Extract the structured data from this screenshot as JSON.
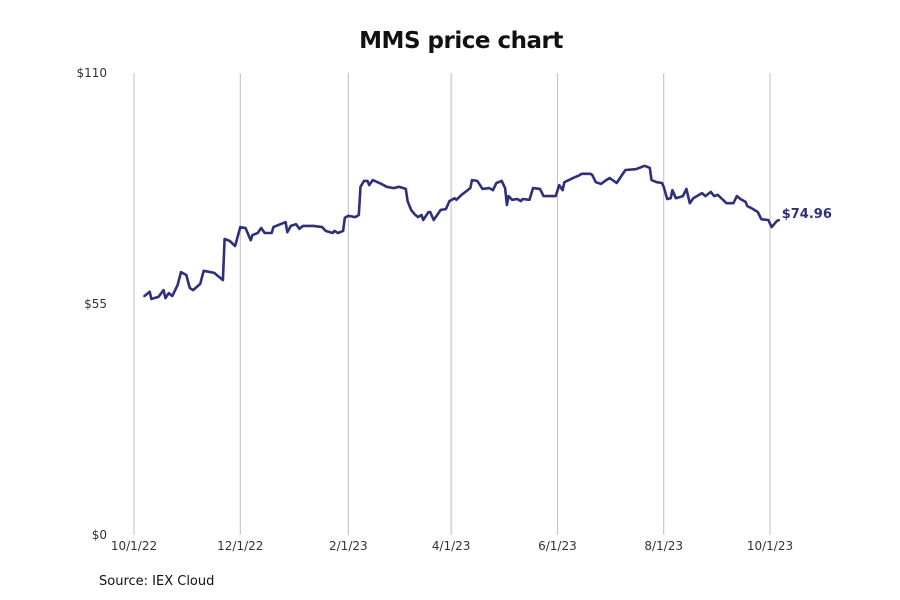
{
  "chart_data": {
    "type": "line",
    "title": "MMS price chart",
    "source": "Source: IEX Cloud",
    "xlabel": "",
    "ylabel": "",
    "ylim": [
      0,
      110
    ],
    "xlim": [
      "2022-10-01",
      "2023-10-01"
    ],
    "y_ticks": [
      {
        "value": 0,
        "label": "$0"
      },
      {
        "value": 55,
        "label": "$55"
      },
      {
        "value": 110,
        "label": "$110"
      }
    ],
    "x_ticks": [
      {
        "date": "2022-10-01",
        "label": "10/1/22"
      },
      {
        "date": "2022-12-01",
        "label": "12/1/22"
      },
      {
        "date": "2023-02-01",
        "label": "2/1/23"
      },
      {
        "date": "2023-04-01",
        "label": "4/1/23"
      },
      {
        "date": "2023-06-01",
        "label": "6/1/23"
      },
      {
        "date": "2023-08-01",
        "label": "8/1/23"
      },
      {
        "date": "2023-10-01",
        "label": "10/1/23"
      }
    ],
    "grid": "vertical",
    "line_color": "#2f2f7c",
    "grid_color": "#bdbdbd",
    "last_value_label": "$74.96",
    "points": [
      [
        "2022-10-07",
        56.9
      ],
      [
        "2022-10-10",
        57.9
      ],
      [
        "2022-10-11",
        56.2
      ],
      [
        "2022-10-15",
        56.7
      ],
      [
        "2022-10-18",
        58.3
      ],
      [
        "2022-10-19",
        56.4
      ],
      [
        "2022-10-21",
        57.6
      ],
      [
        "2022-10-23",
        56.9
      ],
      [
        "2022-10-26",
        59.5
      ],
      [
        "2022-10-28",
        62.6
      ],
      [
        "2022-10-31",
        61.9
      ],
      [
        "2022-11-02",
        58.8
      ],
      [
        "2022-11-04",
        58.3
      ],
      [
        "2022-11-08",
        59.8
      ],
      [
        "2022-11-10",
        62.9
      ],
      [
        "2022-11-16",
        62.4
      ],
      [
        "2022-11-21",
        60.7
      ],
      [
        "2022-11-22",
        70.5
      ],
      [
        "2022-11-25",
        70.0
      ],
      [
        "2022-11-28",
        68.8
      ],
      [
        "2022-12-01",
        73.3
      ],
      [
        "2022-12-04",
        73.1
      ],
      [
        "2022-12-07",
        70.2
      ],
      [
        "2022-12-08",
        71.4
      ],
      [
        "2022-12-11",
        71.9
      ],
      [
        "2022-12-13",
        73.1
      ],
      [
        "2022-12-15",
        71.9
      ],
      [
        "2022-12-19",
        71.9
      ],
      [
        "2022-12-20",
        73.3
      ],
      [
        "2022-12-27",
        74.5
      ],
      [
        "2022-12-28",
        72.1
      ],
      [
        "2022-12-30",
        73.6
      ],
      [
        "2023-01-02",
        74.0
      ],
      [
        "2023-01-04",
        72.9
      ],
      [
        "2023-01-06",
        73.6
      ],
      [
        "2023-01-12",
        73.6
      ],
      [
        "2023-01-17",
        73.3
      ],
      [
        "2023-01-19",
        72.4
      ],
      [
        "2023-01-23",
        71.9
      ],
      [
        "2023-01-24",
        72.4
      ],
      [
        "2023-01-26",
        71.9
      ],
      [
        "2023-01-29",
        72.4
      ],
      [
        "2023-01-30",
        75.5
      ],
      [
        "2023-02-01",
        76.0
      ],
      [
        "2023-02-05",
        75.7
      ],
      [
        "2023-02-07",
        76.2
      ],
      [
        "2023-02-08",
        82.9
      ],
      [
        "2023-02-10",
        84.3
      ],
      [
        "2023-02-12",
        84.3
      ],
      [
        "2023-02-13",
        83.3
      ],
      [
        "2023-02-15",
        84.5
      ],
      [
        "2023-02-20",
        83.6
      ],
      [
        "2023-02-23",
        82.9
      ],
      [
        "2023-02-27",
        82.6
      ],
      [
        "2023-03-02",
        82.9
      ],
      [
        "2023-03-06",
        82.4
      ],
      [
        "2023-03-07",
        79.5
      ],
      [
        "2023-03-09",
        77.4
      ],
      [
        "2023-03-11",
        76.4
      ],
      [
        "2023-03-13",
        75.7
      ],
      [
        "2023-03-15",
        76.2
      ],
      [
        "2023-03-16",
        75.0
      ],
      [
        "2023-03-19",
        76.9
      ],
      [
        "2023-03-20",
        76.9
      ],
      [
        "2023-03-22",
        75.0
      ],
      [
        "2023-03-26",
        77.4
      ],
      [
        "2023-03-29",
        77.6
      ],
      [
        "2023-03-31",
        79.5
      ],
      [
        "2023-04-03",
        80.2
      ],
      [
        "2023-04-04",
        79.8
      ],
      [
        "2023-04-07",
        81.0
      ],
      [
        "2023-04-12",
        82.6
      ],
      [
        "2023-04-13",
        84.5
      ],
      [
        "2023-04-16",
        84.3
      ],
      [
        "2023-04-19",
        82.4
      ],
      [
        "2023-04-23",
        82.6
      ],
      [
        "2023-04-25",
        82.1
      ],
      [
        "2023-04-27",
        83.8
      ],
      [
        "2023-04-30",
        84.3
      ],
      [
        "2023-05-02",
        82.6
      ],
      [
        "2023-05-03",
        78.6
      ],
      [
        "2023-05-04",
        80.7
      ],
      [
        "2023-05-06",
        79.8
      ],
      [
        "2023-05-09",
        80.0
      ],
      [
        "2023-05-11",
        79.5
      ],
      [
        "2023-05-12",
        80.0
      ],
      [
        "2023-05-16",
        79.8
      ],
      [
        "2023-05-18",
        82.6
      ],
      [
        "2023-05-22",
        82.4
      ],
      [
        "2023-05-24",
        80.7
      ],
      [
        "2023-05-31",
        80.7
      ],
      [
        "2023-06-02",
        83.3
      ],
      [
        "2023-06-04",
        82.1
      ],
      [
        "2023-06-05",
        84.0
      ],
      [
        "2023-06-11",
        85.2
      ],
      [
        "2023-06-13",
        85.5
      ],
      [
        "2023-06-15",
        86.0
      ],
      [
        "2023-06-20",
        86.0
      ],
      [
        "2023-06-21",
        85.7
      ],
      [
        "2023-06-23",
        84.0
      ],
      [
        "2023-06-26",
        83.6
      ],
      [
        "2023-06-29",
        84.5
      ],
      [
        "2023-07-01",
        85.0
      ],
      [
        "2023-07-05",
        83.8
      ],
      [
        "2023-07-08",
        85.7
      ],
      [
        "2023-07-10",
        86.9
      ],
      [
        "2023-07-16",
        87.1
      ],
      [
        "2023-07-18",
        87.4
      ],
      [
        "2023-07-21",
        87.9
      ],
      [
        "2023-07-23",
        87.6
      ],
      [
        "2023-07-24",
        87.4
      ],
      [
        "2023-07-25",
        84.5
      ],
      [
        "2023-07-28",
        84.0
      ],
      [
        "2023-07-31",
        83.8
      ],
      [
        "2023-08-01",
        82.9
      ],
      [
        "2023-08-03",
        80.0
      ],
      [
        "2023-08-05",
        80.2
      ],
      [
        "2023-08-06",
        82.1
      ],
      [
        "2023-08-08",
        80.2
      ],
      [
        "2023-08-12",
        80.7
      ],
      [
        "2023-08-14",
        82.4
      ],
      [
        "2023-08-16",
        79.0
      ],
      [
        "2023-08-18",
        80.2
      ],
      [
        "2023-08-23",
        81.4
      ],
      [
        "2023-08-25",
        80.7
      ],
      [
        "2023-08-28",
        81.7
      ],
      [
        "2023-08-30",
        80.7
      ],
      [
        "2023-09-01",
        81.0
      ],
      [
        "2023-09-04",
        79.8
      ],
      [
        "2023-09-06",
        79.0
      ],
      [
        "2023-09-10",
        79.0
      ],
      [
        "2023-09-12",
        80.7
      ],
      [
        "2023-09-14",
        80.0
      ],
      [
        "2023-09-17",
        79.3
      ],
      [
        "2023-09-18",
        78.3
      ],
      [
        "2023-09-20",
        77.9
      ],
      [
        "2023-09-24",
        76.9
      ],
      [
        "2023-09-26",
        75.2
      ],
      [
        "2023-09-30",
        75.0
      ],
      [
        "2023-10-02",
        73.3
      ],
      [
        "2023-10-05",
        74.8
      ],
      [
        "2023-10-06",
        74.96
      ]
    ]
  }
}
